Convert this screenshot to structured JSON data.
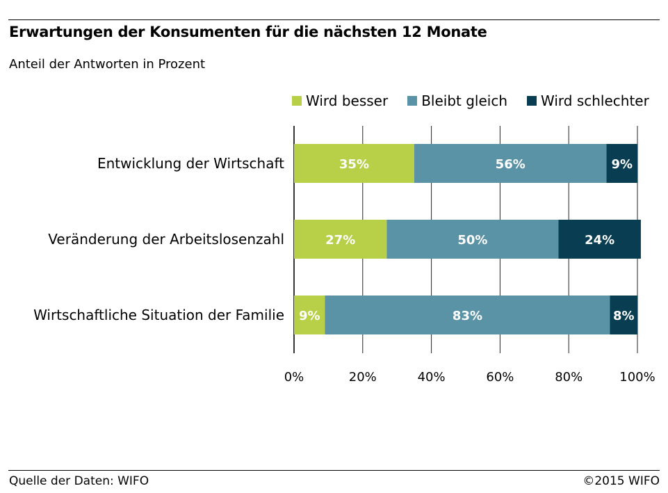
{
  "header": {
    "title": "Erwartungen der Konsumenten für die nächsten 12 Monate",
    "subtitle": "Anteil der Antworten in Prozent"
  },
  "footer": {
    "source": "Quelle der Daten: WIFO",
    "copyright": "©2015 WIFO"
  },
  "chart_data": {
    "type": "bar",
    "orientation": "horizontal",
    "stacked": true,
    "title": "Erwartungen der Konsumenten für die nächsten 12 Monate",
    "subtitle": "Anteil der Antworten in Prozent",
    "categories": [
      "Entwicklung der Wirtschaft",
      "Veränderung der Arbeitslosenzahl",
      "Wirtschaftliche Situation der Familie"
    ],
    "series": [
      {
        "name": "Wird besser",
        "color": "#b8cf48",
        "values": [
          35,
          27,
          9
        ],
        "labels": [
          "35%",
          "27%",
          "9%"
        ]
      },
      {
        "name": "Bleibt gleich",
        "color": "#5a93a6",
        "values": [
          56,
          50,
          83
        ],
        "labels": [
          "56%",
          "50%",
          "83%"
        ]
      },
      {
        "name": "Wird schlechter",
        "color": "#083d52",
        "values": [
          9,
          24,
          8
        ],
        "labels": [
          "9%",
          "24%",
          "8%"
        ]
      }
    ],
    "xlim": [
      0,
      100
    ],
    "x_ticks": [
      0,
      20,
      40,
      60,
      80,
      100
    ],
    "x_tick_labels": [
      "0%",
      "20%",
      "40%",
      "60%",
      "80%",
      "100%"
    ],
    "grid": true,
    "legend_position": "top-right"
  }
}
